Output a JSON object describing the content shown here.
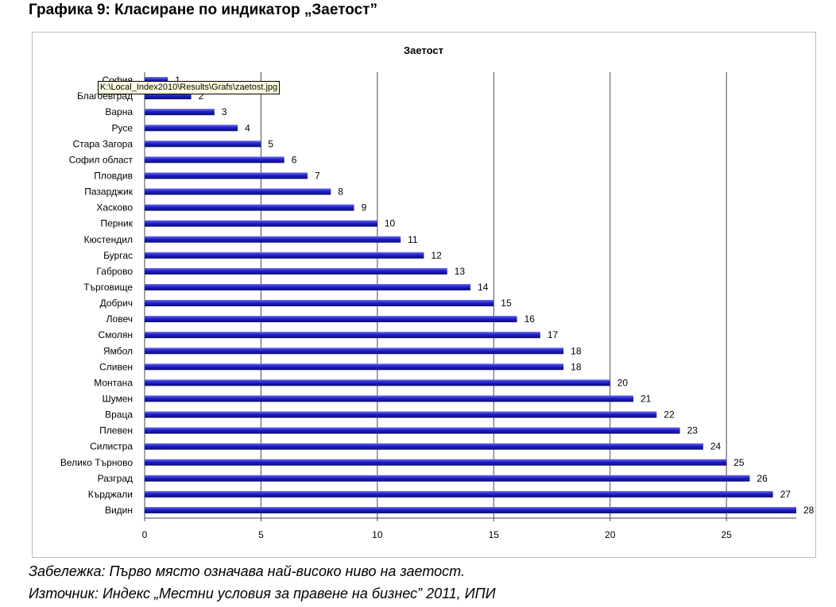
{
  "page": {
    "heading": "Графика 9: Класиране по индикатор „Заетост”",
    "note": "Забележка: Първо място означава най-високо ниво на заетост.",
    "source": "Източник: Индекс „Местни условия за правене на бизнес” 2011, ИПИ",
    "tooltip": "K:\\Local_Index2010\\Results\\Grafs\\zaetost.jpg"
  },
  "colors": {
    "bar": "#2020c8",
    "bar_dark": "#0a0a78",
    "bar_light": "#6a6af0",
    "grid": "#4a4a4a"
  },
  "chart_data": {
    "type": "bar",
    "orientation": "horizontal",
    "title": "Заетост",
    "categories": [
      "София",
      "Благоевград",
      "Варна",
      "Русе",
      "Стара Загора",
      "Софил област",
      "Пловдив",
      "Пазарджик",
      "Хасково",
      "Перник",
      "Кюстендил",
      "Бургас",
      "Габрово",
      "Търговище",
      "Добрич",
      "Ловеч",
      "Смолян",
      "Ямбол",
      "Сливен",
      "Монтана",
      "Шумен",
      "Враца",
      "Плевен",
      "Силистра",
      "Велико Търново",
      "Разград",
      "Кърджали",
      "Видин"
    ],
    "values": [
      1,
      2,
      3,
      4,
      5,
      6,
      7,
      8,
      9,
      10,
      11,
      12,
      13,
      14,
      15,
      16,
      17,
      18,
      18,
      20,
      21,
      22,
      23,
      24,
      25,
      26,
      27,
      28
    ],
    "xlim": [
      0,
      28
    ],
    "xticks": [
      0,
      5,
      10,
      15,
      20,
      25
    ],
    "grid": true,
    "legend": "none"
  }
}
